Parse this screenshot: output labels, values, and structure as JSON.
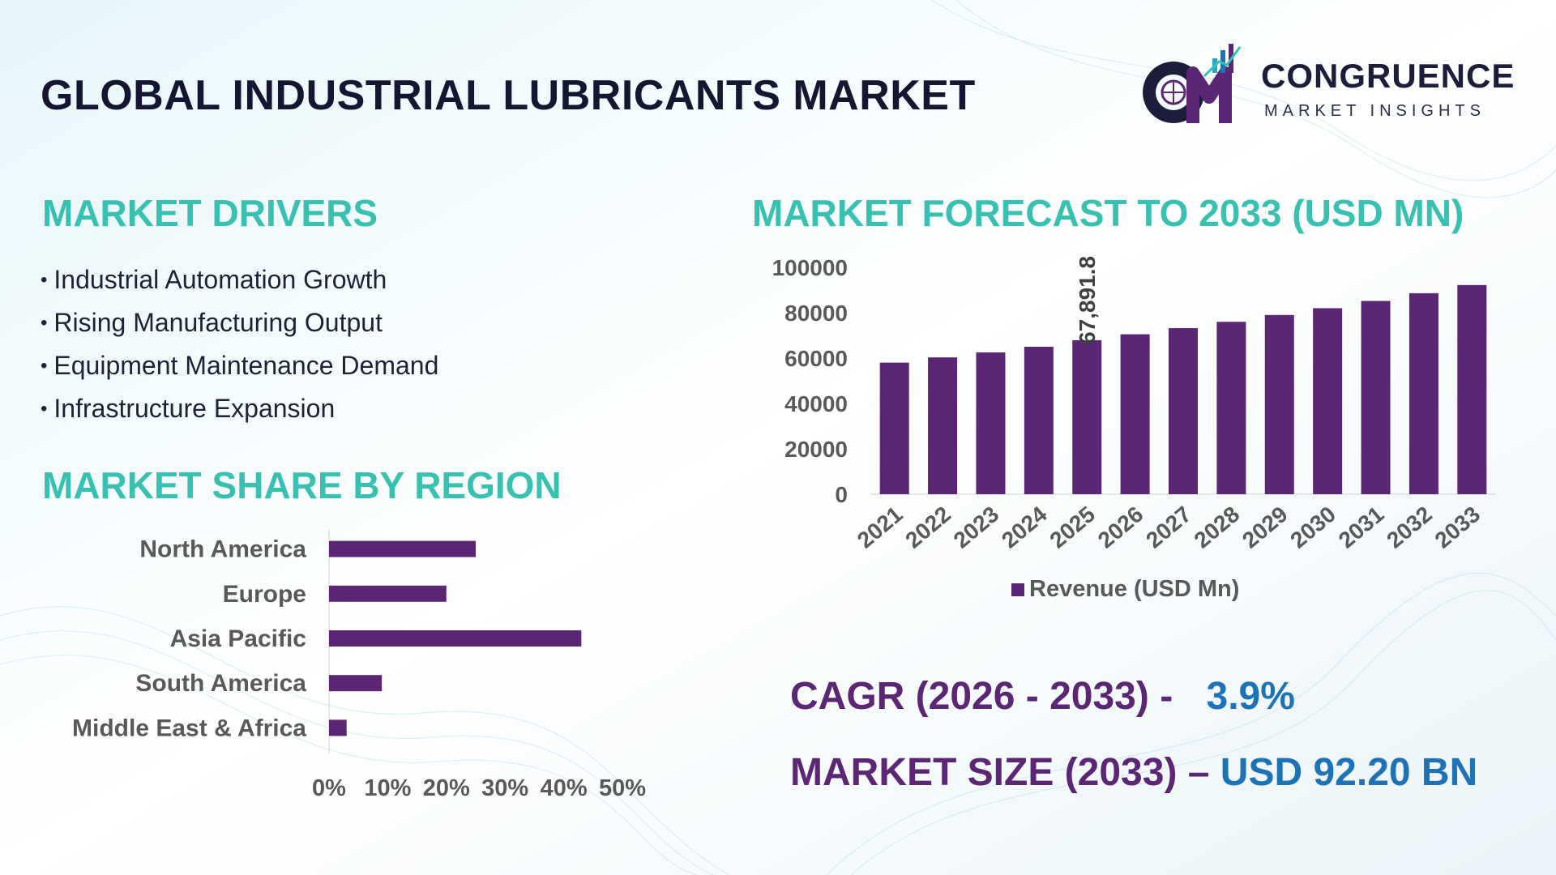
{
  "header": {
    "title": "GLOBAL INDUSTRIAL LUBRICANTS MARKET"
  },
  "logo": {
    "name": "CONGRUENCE",
    "tagline": "MARKET INSIGHTS",
    "icon": "cmi-logo-icon"
  },
  "drivers": {
    "heading": "MARKET DRIVERS",
    "items": [
      "Industrial Automation Growth",
      "Rising Manufacturing Output",
      "Equipment Maintenance Demand",
      "Infrastructure Expansion"
    ]
  },
  "region_section": {
    "heading": "MARKET SHARE BY REGION"
  },
  "forecast_section": {
    "heading": "MARKET FORECAST TO 2033 (USD MN)"
  },
  "kpis": {
    "cagr_label": "CAGR (2026 - 2033) -",
    "cagr_value": "3.9%",
    "size_label": "MARKET SIZE (2033) –",
    "size_value": "USD 92.20 BN"
  },
  "colors": {
    "bar": "#5b2673",
    "heading": "#38c1b1",
    "kpi_label": "#5b2673",
    "kpi_value": "#1e72b6",
    "title": "#141632"
  },
  "chart_data": [
    {
      "type": "bar",
      "orientation": "vertical",
      "categories": [
        "2021",
        "2022",
        "2023",
        "2024",
        "2025",
        "2026",
        "2027",
        "2028",
        "2029",
        "2030",
        "2031",
        "2032",
        "2033"
      ],
      "series": [
        {
          "name": "Revenue (USD Mn)",
          "values": [
            58000,
            60300,
            62500,
            65000,
            67891.8,
            70500,
            73200,
            76000,
            79000,
            82000,
            85200,
            88600,
            92200
          ]
        }
      ],
      "data_labels": [
        {
          "category": "2025",
          "text": "67,891.8"
        }
      ],
      "y_ticks": [
        "100000",
        "80000",
        "60000",
        "40000",
        "20000",
        "0"
      ],
      "ylim": [
        0,
        100000
      ],
      "legend": "bottom",
      "grid": false
    },
    {
      "type": "bar",
      "orientation": "horizontal",
      "categories": [
        "North America",
        "Europe",
        "Asia Pacific",
        "South America",
        "Middle East & Africa"
      ],
      "values": [
        25,
        20,
        43,
        9,
        3
      ],
      "x_ticks": [
        "0%",
        "10%",
        "20%",
        "30%",
        "40%",
        "50%"
      ],
      "xlim": [
        0,
        50
      ],
      "legend": "none",
      "grid": false
    }
  ]
}
